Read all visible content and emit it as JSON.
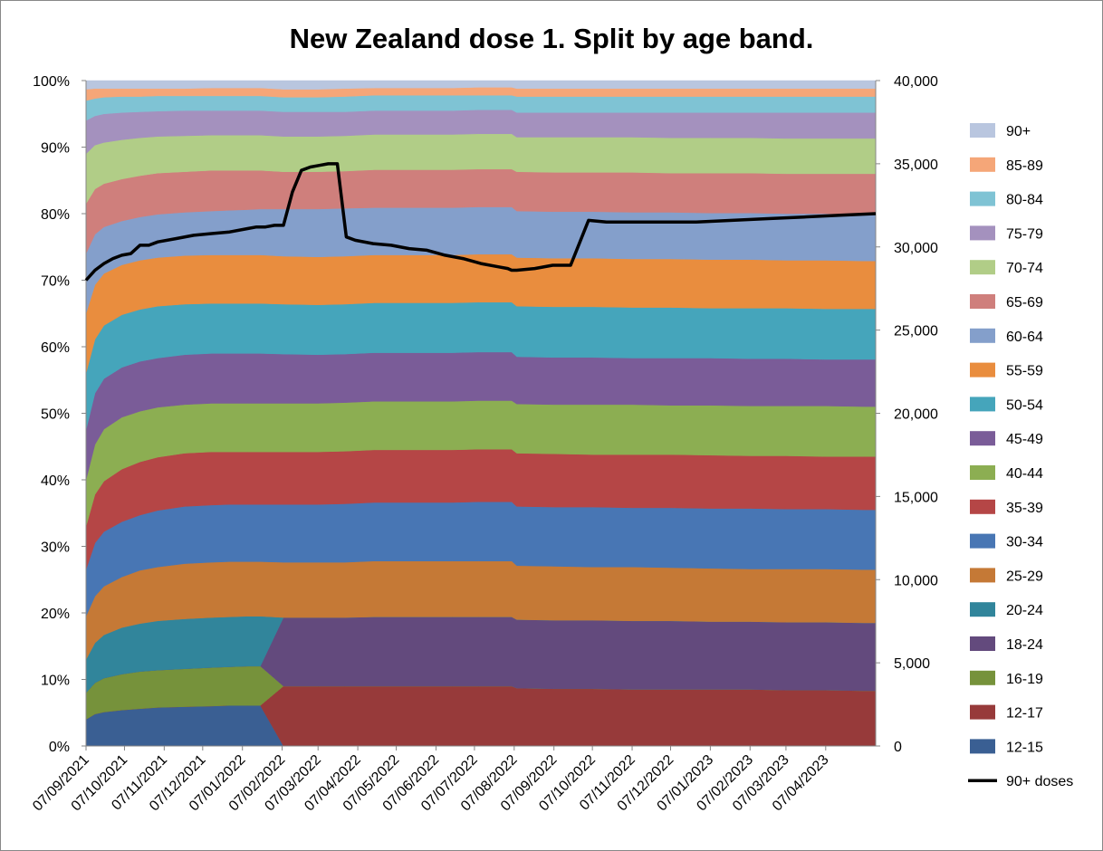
{
  "chart_data": {
    "type": "area",
    "title": "New Zealand dose 1. Split by age band.",
    "x_dates": [
      "07/09/2021",
      "14/09/2021",
      "21/09/2021",
      "28/09/2021",
      "05/10/2021",
      "12/10/2021",
      "19/10/2021",
      "26/10/2021",
      "02/11/2021",
      "16/11/2021",
      "30/11/2021",
      "14/12/2021",
      "28/12/2021",
      "11/01/2022",
      "18/01/2022",
      "25/01/2022",
      "01/02/2022",
      "08/02/2022",
      "15/02/2022",
      "22/02/2022",
      "01/03/2022",
      "08/03/2022",
      "15/03/2022",
      "22/03/2022",
      "29/03/2022",
      "05/04/2022",
      "19/04/2022",
      "03/05/2022",
      "17/05/2022",
      "31/05/2022",
      "14/06/2022",
      "28/06/2022",
      "12/07/2022",
      "26/07/2022",
      "02/08/2022",
      "05/08/2022",
      "09/08/2022",
      "23/08/2022",
      "06/09/2022",
      "20/09/2022",
      "04/10/2022",
      "18/10/2022",
      "01/11/2022",
      "29/11/2022",
      "27/12/2022",
      "24/01/2023",
      "21/02/2023",
      "21/03/2023",
      "18/04/2023",
      "16/05/2023"
    ],
    "xtick_labels": [
      "07/09/2021",
      "07/10/2021",
      "07/11/2021",
      "07/12/2021",
      "07/01/2022",
      "07/02/2022",
      "07/03/2022",
      "07/04/2022",
      "07/05/2022",
      "07/06/2022",
      "07/07/2022",
      "07/08/2022",
      "07/09/2022",
      "07/10/2022",
      "07/11/2022",
      "07/12/2022",
      "07/01/2023",
      "07/02/2023",
      "07/03/2023",
      "07/04/2023"
    ],
    "y_left_ticks": [
      "0%",
      "10%",
      "20%",
      "30%",
      "40%",
      "50%",
      "60%",
      "70%",
      "80%",
      "90%",
      "100%"
    ],
    "y_right_ticks": [
      "0",
      "5,000",
      "10,000",
      "15,000",
      "20,000",
      "25,000",
      "30,000",
      "35,000",
      "40,000"
    ],
    "ylim_left": [
      0,
      100
    ],
    "ylim_right": [
      0,
      40000
    ],
    "grid": false,
    "legend_position": "right",
    "band_boundaries_pct": [
      [
        4,
        4.8,
        5.1,
        5.4,
        5.6,
        5.8,
        5.9,
        6,
        6.1,
        6.1,
        6.1,
        0,
        0,
        0,
        0,
        0,
        0,
        0,
        0,
        0,
        0,
        0,
        0,
        0,
        0,
        0,
        0,
        0,
        0,
        0
      ],
      [
        4,
        4.8,
        5.1,
        5.4,
        5.6,
        5.8,
        5.9,
        6,
        6.1,
        6.1,
        6.1,
        9,
        9,
        9,
        9,
        9,
        9,
        9,
        9,
        8.7,
        8.6,
        8.6,
        8.5,
        8.5,
        8.5,
        8.5,
        8.4,
        8.4,
        8.3,
        8.3
      ],
      [
        8,
        9.5,
        10.2,
        10.8,
        11.2,
        11.4,
        11.6,
        11.8,
        11.9,
        12,
        12,
        9,
        9,
        9,
        9,
        9,
        9,
        9,
        9,
        8.7,
        8.6,
        8.6,
        8.5,
        8.5,
        8.5,
        8.5,
        8.4,
        8.4,
        8.3,
        8.3
      ],
      [
        8,
        9.5,
        10.2,
        10.8,
        11.2,
        11.4,
        11.6,
        11.8,
        11.9,
        12,
        12,
        19.3,
        19.3,
        19.3,
        19.4,
        19.4,
        19.4,
        19.4,
        19.4,
        19,
        18.9,
        18.9,
        18.8,
        18.8,
        18.7,
        18.7,
        18.6,
        18.6,
        18.5,
        18.5
      ],
      [
        13,
        15.5,
        16.7,
        17.8,
        18.4,
        18.8,
        19.1,
        19.3,
        19.4,
        19.5,
        19.5,
        19.3,
        19.3,
        19.3,
        19.4,
        19.4,
        19.4,
        19.4,
        19.4,
        19,
        18.9,
        18.9,
        18.8,
        18.8,
        18.7,
        18.7,
        18.6,
        18.6,
        18.5,
        18.5
      ],
      [
        19.5,
        22.5,
        24,
        25.4,
        26.4,
        26.9,
        27.4,
        27.6,
        27.7,
        27.7,
        27.7,
        27.6,
        27.6,
        27.6,
        27.8,
        27.8,
        27.8,
        27.8,
        27.8,
        27.1,
        27,
        26.9,
        26.9,
        26.8,
        26.7,
        26.6,
        26.6,
        26.6,
        26.5,
        26.5
      ],
      [
        26.5,
        30.5,
        32.2,
        33.7,
        34.7,
        35.4,
        36,
        36.2,
        36.3,
        36.3,
        36.3,
        36.3,
        36.3,
        36.4,
        36.6,
        36.6,
        36.6,
        36.7,
        36.7,
        36,
        35.9,
        35.9,
        35.8,
        35.8,
        35.7,
        35.7,
        35.6,
        35.6,
        35.5,
        35.5
      ],
      [
        33,
        37.8,
        39.8,
        41.6,
        42.7,
        43.4,
        44,
        44.2,
        44.2,
        44.2,
        44.2,
        44.2,
        44.2,
        44.3,
        44.5,
        44.5,
        44.5,
        44.6,
        44.6,
        44,
        43.9,
        43.8,
        43.8,
        43.8,
        43.7,
        43.6,
        43.6,
        43.5,
        43.5,
        43.5
      ],
      [
        40,
        45.3,
        47.6,
        49.4,
        50.3,
        50.9,
        51.3,
        51.5,
        51.5,
        51.5,
        51.5,
        51.5,
        51.5,
        51.6,
        51.8,
        51.8,
        51.8,
        51.9,
        51.9,
        51.4,
        51.3,
        51.3,
        51.3,
        51.2,
        51.2,
        51.1,
        51.1,
        51.1,
        51,
        51
      ],
      [
        47.5,
        53,
        55.2,
        56.9,
        57.8,
        58.3,
        58.8,
        59,
        59,
        59,
        59,
        58.9,
        58.8,
        58.9,
        59.1,
        59.1,
        59.1,
        59.2,
        59.2,
        58.5,
        58.4,
        58.4,
        58.3,
        58.3,
        58.3,
        58.2,
        58.2,
        58.1,
        58.1,
        58.1
      ],
      [
        56,
        61.1,
        63.2,
        64.8,
        65.6,
        66.1,
        66.4,
        66.5,
        66.5,
        66.5,
        66.5,
        66.4,
        66.3,
        66.4,
        66.6,
        66.6,
        66.6,
        66.7,
        66.7,
        66.1,
        66,
        66,
        65.9,
        65.9,
        65.8,
        65.8,
        65.8,
        65.7,
        65.7,
        65.7
      ],
      [
        65,
        69.3,
        71,
        72.3,
        73,
        73.4,
        73.7,
        73.8,
        73.8,
        73.8,
        73.8,
        73.6,
        73.5,
        73.6,
        73.8,
        73.8,
        73.8,
        73.9,
        73.9,
        73.4,
        73.3,
        73.3,
        73.2,
        73.2,
        73.1,
        73.1,
        73,
        73,
        72.9,
        72.9
      ],
      [
        74,
        76.9,
        78,
        78.9,
        79.5,
        79.9,
        80.2,
        80.4,
        80.5,
        80.6,
        80.7,
        80.7,
        80.7,
        80.8,
        80.9,
        80.9,
        80.9,
        81,
        81,
        80.4,
        80.3,
        80.3,
        80.2,
        80.2,
        80.1,
        80.1,
        80,
        80,
        79.9,
        79.9
      ],
      [
        81.5,
        83.7,
        84.5,
        85.2,
        85.7,
        86.1,
        86.3,
        86.5,
        86.5,
        86.5,
        86.5,
        86.3,
        86.3,
        86.4,
        86.6,
        86.6,
        86.6,
        86.7,
        86.7,
        86.3,
        86.2,
        86.2,
        86.2,
        86.1,
        86.1,
        86.1,
        86,
        86,
        86,
        86
      ],
      [
        89,
        90.3,
        90.7,
        91.1,
        91.4,
        91.6,
        91.7,
        91.8,
        91.8,
        91.8,
        91.8,
        91.6,
        91.6,
        91.7,
        91.9,
        91.9,
        91.9,
        92,
        92,
        91.5,
        91.5,
        91.5,
        91.5,
        91.4,
        91.4,
        91.4,
        91.3,
        91.3,
        91.3,
        91.3
      ],
      [
        94,
        94.7,
        95,
        95.2,
        95.3,
        95.4,
        95.5,
        95.5,
        95.5,
        95.5,
        95.5,
        95.3,
        95.3,
        95.3,
        95.5,
        95.5,
        95.5,
        95.6,
        95.6,
        95.2,
        95.2,
        95.2,
        95.2,
        95.2,
        95.2,
        95.2,
        95.2,
        95.2,
        95.2,
        95.2
      ],
      [
        97,
        97.3,
        97.5,
        97.6,
        97.6,
        97.7,
        97.7,
        97.7,
        97.7,
        97.7,
        97.7,
        97.5,
        97.5,
        97.6,
        97.8,
        97.8,
        97.8,
        97.8,
        97.8,
        97.6,
        97.6,
        97.6,
        97.6,
        97.6,
        97.6,
        97.6,
        97.6,
        97.6,
        97.6,
        97.6
      ],
      [
        98.7,
        98.8,
        98.8,
        98.8,
        98.8,
        98.8,
        98.8,
        98.9,
        98.9,
        98.9,
        98.9,
        98.7,
        98.7,
        98.8,
        98.9,
        98.9,
        98.9,
        99,
        99,
        98.8,
        98.8,
        98.8,
        98.8,
        98.8,
        98.8,
        98.8,
        98.8,
        98.8,
        98.8,
        98.8
      ],
      [
        100,
        100,
        100,
        100,
        100,
        100,
        100,
        100,
        100,
        100,
        100,
        100,
        100,
        100,
        100,
        100,
        100,
        100,
        100,
        100,
        100,
        100,
        100,
        100,
        100,
        100,
        100,
        100,
        100,
        100
      ]
    ],
    "band_dates": [
      "07/09/2021",
      "14/09/2021",
      "21/09/2021",
      "05/10/2021",
      "19/10/2021",
      "02/11/2021",
      "23/11/2021",
      "14/12/2021",
      "28/12/2021",
      "11/01/2022",
      "21/01/2022",
      "08/02/2022",
      "07/03/2022",
      "28/03/2022",
      "20/04/2022",
      "14/05/2022",
      "20/06/2022",
      "10/07/2022",
      "05/08/2022",
      "09/08/2022",
      "07/09/2022",
      "07/10/2022",
      "07/11/2022",
      "07/12/2022",
      "07/01/2023",
      "07/02/2023",
      "07/03/2023",
      "07/04/2023",
      "07/05/2023",
      "16/05/2023"
    ],
    "series": [
      {
        "name": "90+",
        "color": "#B9C6DF"
      },
      {
        "name": "85-89",
        "color": "#F5A678"
      },
      {
        "name": "80-84",
        "color": "#7FC3D4"
      },
      {
        "name": "75-79",
        "color": "#A491BE"
      },
      {
        "name": "70-74",
        "color": "#B1CD87"
      },
      {
        "name": "65-69",
        "color": "#CF7F7C"
      },
      {
        "name": "60-64",
        "color": "#849FCB"
      },
      {
        "name": "55-59",
        "color": "#E98D3E"
      },
      {
        "name": "50-54",
        "color": "#45A5BB"
      },
      {
        "name": "45-49",
        "color": "#7A5C98"
      },
      {
        "name": "40-44",
        "color": "#8CAE52"
      },
      {
        "name": "35-39",
        "color": "#B54646"
      },
      {
        "name": "30-34",
        "color": "#4876B4"
      },
      {
        "name": "25-29",
        "color": "#C57936"
      },
      {
        "name": "20-24",
        "color": "#31859B"
      },
      {
        "name": "18-24",
        "color": "#634A7D"
      },
      {
        "name": "16-19",
        "color": "#76923B"
      },
      {
        "name": "12-17",
        "color": "#973A3A"
      },
      {
        "name": "12-15",
        "color": "#3A5F93"
      }
    ],
    "line_series": {
      "name": "90+ doses",
      "color": "#000000",
      "axis": "right",
      "values": [
        28000,
        28600,
        29000,
        29300,
        29500,
        29600,
        30100,
        30100,
        30300,
        30500,
        30700,
        30800,
        30900,
        31100,
        31200,
        31200,
        31300,
        31300,
        33300,
        34600,
        34800,
        34900,
        35000,
        35000,
        30600,
        30400,
        30200,
        30100,
        29900,
        29800,
        29500,
        29300,
        29000,
        28800,
        28700,
        28600,
        28600,
        28700,
        28900,
        28900,
        31600,
        31500,
        31500,
        31500,
        31500,
        31600,
        31700,
        31800,
        31900,
        32000
      ]
    }
  }
}
